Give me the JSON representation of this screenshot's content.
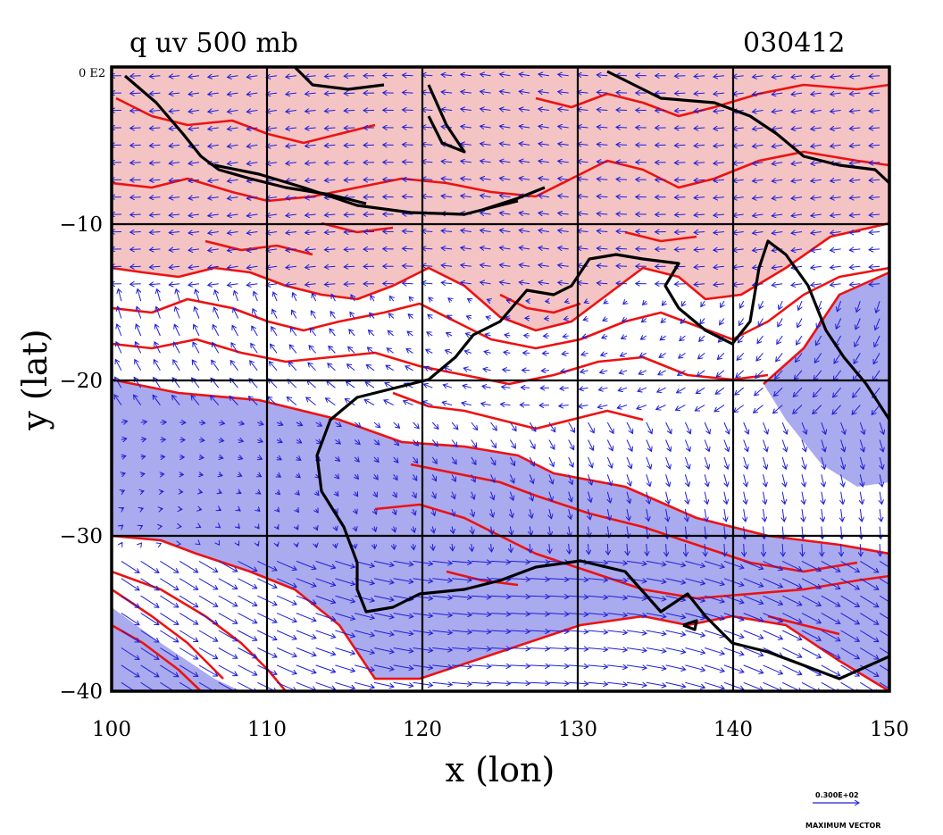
{
  "title_left": "q uv 500 mb",
  "title_right": "030412",
  "corner_label": "0 E2",
  "xlabel": "x (lon)",
  "ylabel": "y (lat)",
  "x_ticks": [
    "100",
    "110",
    "120",
    "130",
    "140",
    "150"
  ],
  "y_ticks": [
    "−10",
    "−20",
    "−30",
    "−40"
  ],
  "legend": {
    "value": "0.300E+02",
    "caption": "MAXIMUM VECTOR"
  },
  "colors": {
    "moist_fill": "#f4c4c4",
    "dry_fill": "#aaaaee",
    "contour": "#ee1111",
    "vector": "#1f1fd8",
    "coast": "#000000"
  },
  "map": {
    "lon_range": [
      100,
      150
    ],
    "lat_range": [
      -40,
      0
    ],
    "grid_lon": [
      110,
      120,
      130,
      140
    ],
    "grid_lat": [
      -10,
      -20,
      -30
    ]
  }
}
